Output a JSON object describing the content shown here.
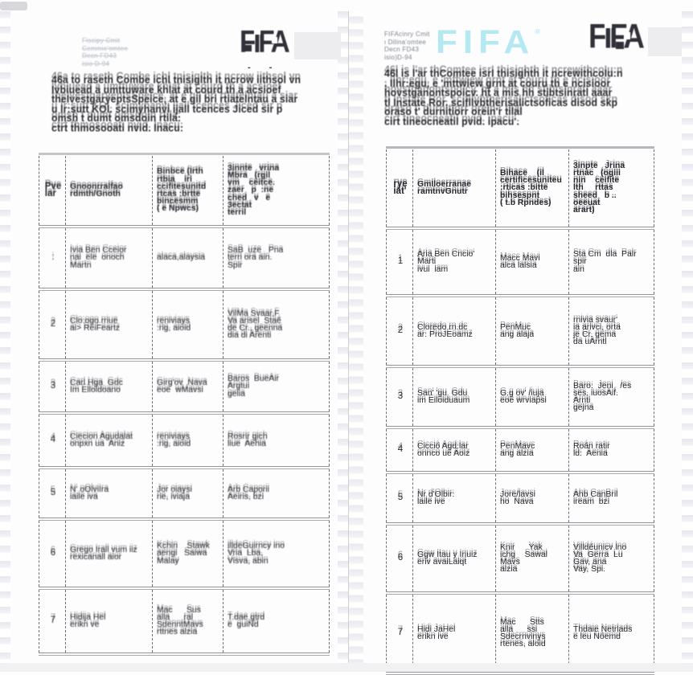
{
  "pages": [
    {
      "side": "left",
      "meta": "Fiscipy Cmit\nCemmie'omtee\nDecn FD43\nisio D-94",
      "logo_dark": "FIFA",
      "logo_dashes": "- -",
      "paragraph": "46a to raseth Combe ichl tnisiglth it ncrow iithsol vn\nIvbiuead a umttuware khlat at courd th a acsioef\ntheIvestgaryeptsSpeice, at e gil bri rtiatelntau a siar\nu lr:sutt KOl. scimyhanvi ijall tcences Jiced sir p\nomsh t dumt omsdoin rtila:\nctrt thmosooati nvid. Inacu:",
      "table": {
        "headers": {
          "num": "Pve\nlar",
          "name": "Gnoonrralfao\nrdmth/Gnoth",
          "submitted": "Binbce (Irth\nrtbia    iri\nccifitesunitd\nrtcas :brtte\nbincesmm\n( e Npwcs)",
          "original": "3innte   vrina\nMbra   (rgil\nvm    ceitce.\nzaer   p  :ne\nched   v   e\n3ectat\nterril"
        },
        "rows": [
          {
            "num": ":",
            "name": "Ivia Ben Cceior\nnai  ele  onoch\nMartn",
            "submitted": "alaca,alaysia",
            "original": "SaB  uze   Pna\nterri ora ain.\nSpir"
          },
          {
            "num": "2",
            "name": "Clo:ogo rriue\nai> ReiFeartz",
            "submitted": "reniviays\n:rig, aioid",
            "original": "VilMa Svaar,F\nVa arisel  Staé\nde Cr., geenna\ndia di Arenti"
          },
          {
            "num": "3",
            "name": "Carl Hga  Gdc\nIm Elloldoano",
            "submitted": "Girg'ov  Nava\neoe  wMavsi",
            "original": "Baros  BueAir\nArgtui\ngelia"
          },
          {
            "num": "4",
            "name": "Ciecion Agudalat\nonpxn ua  Aniz",
            "submitted": "reniviays\n:rig, aioid",
            "original": "Rosrir gich\nliue  Aehia"
          },
          {
            "num": "5",
            "name": "N' oOlviIra\niaile iva",
            "submitted": "Jor oiaysi\nrie, iviaja",
            "original": "Arb Caporii\nAeiris, bzi"
          },
          {
            "num": "6",
            "name": "Grego Irall vum iiz\nrexicanall aior",
            "submitted": "Kchin    Stawk\naengi   Saiwa\nMalay",
            "original": "illdeGuirncy ino\nVria  Lba,\nVisva, abin"
          },
          {
            "num": "7",
            "name": "Hidija Hel\nerikn ve",
            "submitted": "Mac      Sus\nalla      ral\nSdenntMavs\nrttnes alzia",
            "original": "T.dae gtrd\ne  guiNd"
          }
        ]
      }
    },
    {
      "side": "right",
      "meta": "FIFAcinry Cmit\nι Dilina'omtee\nDecn FD43\nisio)D-94",
      "fifa_wordmark": "FIFA",
      "registered_mark": "®",
      "logo_dark": "FIFA",
      "paragraph": "46l is l'ar thComtee isrI thisighth it ncrewithcoIu:n\n. Ilhr:egu, e 'mttwiew grnt at couru th e ncisioor\nhovstganontspoicv. ht a mis hh stibtsinratl aaar\ntl Instate Ror. scifllvbtherisalictsoficas disod skp\noraso t' durnitiorr orein'r tilal\ncirt tineocneatil pvid. ipacu'.",
      "table": {
        "headers": {
          "num": "rye\niat'",
          "name": "GmIloerranae\nramtnvGnutr",
          "submitted": "Bihace    (il\ncertificesuniteu\n:rticas :bitte\nbihsespnt\n( t.b Rpndes)",
          "original": "3inpte   Jrina\nrtnac   (ogiii\nnin    ceifite\nlth     rttas\nsheed   b ..\noeeuat\narart)"
        },
        "rows": [
          {
            "num": "1",
            "name": "Aria Ben Cncio'\nMarti\nivui  iam",
            "submitted": "Macc Mavi\nalca lalsia",
            "original": "Sta Cm  dla  Palr\nspir\nain"
          },
          {
            "num": "2",
            "name": "Cloredo rn.dc\nar: ProJEoamz",
            "submitted": "PenMuc\nang alaja",
            "original": "rnivia svaur'\nia arivci, orta\nje Cr. gema\nda uArntl"
          },
          {
            "num": "3",
            "name": "San' 'gu  Gdu\nim Eiloiduaum",
            "submitted": "G.g ov' /iuja\neoe wrviapsi",
            "original": "Baro:  Jeni   /es\nses. iuosAif.\nArnti\ngejna"
          },
          {
            "num": "4",
            "name": "Cicció Agd:lar\nonnco ue Aoiz",
            "submitted": "PenMavc\nang alzia",
            "original": "Roán ratir\nld:  Aenia"
          },
          {
            "num": "5",
            "name": "Nr d'Olbir:\nlaile ive",
            "submitted": "Jore/lavsi\nho  Nava",
            "original": "Ahb CanBril\niream  bzi"
          },
          {
            "num": "6",
            "name": "Ggw Itau y Iriuiz\neriv avaiLaiqt",
            "submitted": "Knir      Yak\nichg    Sawal\nMavs\nalzia",
            "original": "Villdéunicv lno\nVa  Gerra  Lu\nGav, ana\nVay, Spi."
          },
          {
            "num": "7",
            "name": "Hidi JaHel\nerikn ive",
            "submitted": "Mac      Stts\nalla      ssi\nSdecrnvinys\nrtenes, aloid",
            "original": "Thdaie Netrlads\ne leu Nóemd"
          }
        ]
      }
    }
  ]
}
